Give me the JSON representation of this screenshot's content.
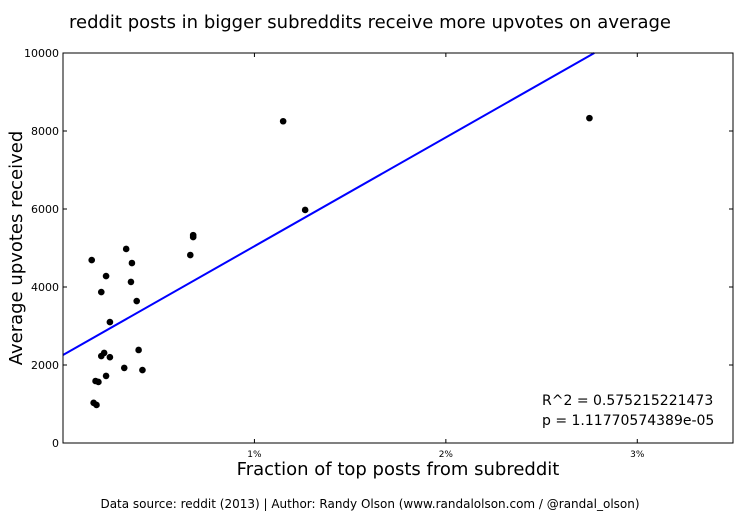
{
  "chart_data": {
    "type": "scatter",
    "title": "reddit posts in bigger subreddits receive more upvotes on average",
    "xlabel": "Fraction of top posts from subreddit",
    "ylabel": "Average upvotes received",
    "xlim": [
      0,
      3.5
    ],
    "ylim": [
      0,
      10000
    ],
    "x_ticks": [
      1,
      2,
      3
    ],
    "x_tick_labels": [
      "1%",
      "2%",
      "3%"
    ],
    "y_ticks": [
      0,
      2000,
      4000,
      6000,
      8000,
      10000
    ],
    "y_tick_labels": [
      "0",
      "2000",
      "4000",
      "6000",
      "8000",
      "10000"
    ],
    "grid": false,
    "points": [
      {
        "x": 0.15,
        "y": 4690
      },
      {
        "x": 0.16,
        "y": 1030
      },
      {
        "x": 0.175,
        "y": 975
      },
      {
        "x": 0.17,
        "y": 1590
      },
      {
        "x": 0.185,
        "y": 1565
      },
      {
        "x": 0.2,
        "y": 3870
      },
      {
        "x": 0.2,
        "y": 2230
      },
      {
        "x": 0.215,
        "y": 2310
      },
      {
        "x": 0.225,
        "y": 4280
      },
      {
        "x": 0.225,
        "y": 1720
      },
      {
        "x": 0.245,
        "y": 3100
      },
      {
        "x": 0.245,
        "y": 2200
      },
      {
        "x": 0.32,
        "y": 1925
      },
      {
        "x": 0.33,
        "y": 4975
      },
      {
        "x": 0.36,
        "y": 4615
      },
      {
        "x": 0.355,
        "y": 4130
      },
      {
        "x": 0.385,
        "y": 3640
      },
      {
        "x": 0.395,
        "y": 2385
      },
      {
        "x": 0.415,
        "y": 1870
      },
      {
        "x": 0.665,
        "y": 4820
      },
      {
        "x": 0.68,
        "y": 5330
      },
      {
        "x": 0.68,
        "y": 5280
      },
      {
        "x": 1.15,
        "y": 8250
      },
      {
        "x": 1.265,
        "y": 5975
      },
      {
        "x": 2.75,
        "y": 8330
      }
    ],
    "fit_line": {
      "intercept": 2256,
      "slope": 2790,
      "color": "#0000ff"
    },
    "point_color": "#000000",
    "annotations": [
      "R^2 = 0.575215221473",
      "p = 1.11770574389e-05"
    ]
  },
  "footer": "Data source: reddit (2013) | Author: Randy Olson (www.randalolson.com / @randal_olson)"
}
